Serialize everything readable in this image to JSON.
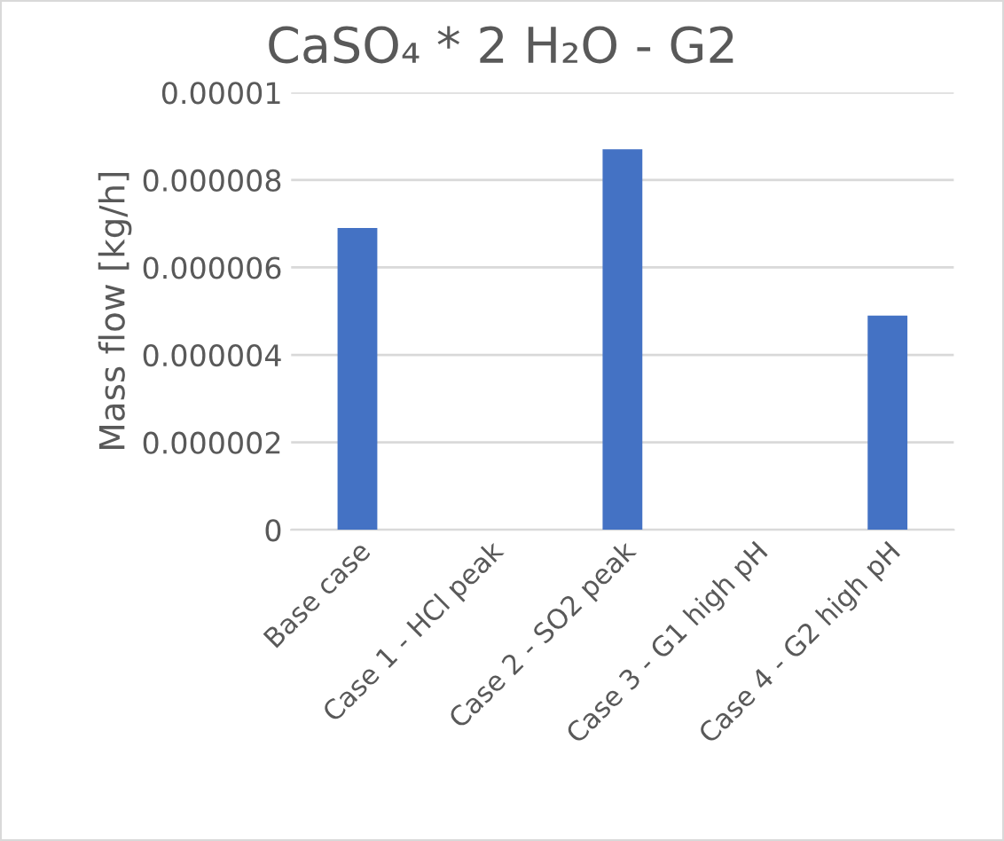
{
  "chart_data": {
    "type": "bar",
    "title": "CaSO₄ * 2 H₂O - G2",
    "ylabel": "Mass flow [kg/h]",
    "categories": [
      "Base case",
      "Case 1 - HCl peak",
      "Case 2 - SO2 peak",
      "Case 3 - G1 high pH",
      "Case 4 - G2 high pH"
    ],
    "values": [
      6.9e-06,
      0,
      8.7e-06,
      0,
      4.9e-06
    ],
    "color": "#4472c4",
    "ylim": [
      0,
      1e-05
    ],
    "yticks": [
      0,
      {
        "value": 2e-06,
        "label": "0.000002"
      },
      {
        "value": 4e-06,
        "label": "0.000004"
      },
      {
        "value": 6e-06,
        "label": "0.000006"
      },
      {
        "value": 8e-06,
        "label": "0.000008"
      },
      {
        "value": 1e-05,
        "label": "0.00001"
      }
    ],
    "grid": "y",
    "legend": false
  }
}
